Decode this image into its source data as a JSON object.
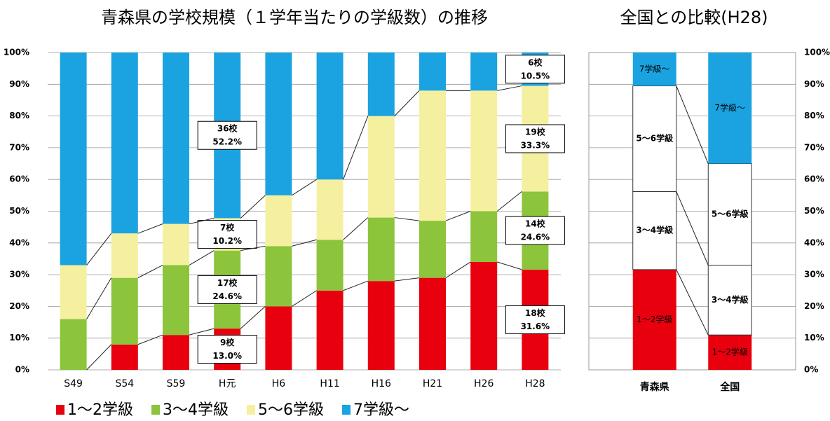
{
  "chart_data": [
    {
      "type": "stacked_bar",
      "title": "青森県の学校規模（１学年当たりの学級数）の推移",
      "categories": [
        "S49",
        "S54",
        "S59",
        "H元",
        "H6",
        "H11",
        "H16",
        "H21",
        "H26",
        "H28"
      ],
      "series": [
        {
          "name": "1〜2学級",
          "color": "#e8000e",
          "values": [
            0,
            8,
            11,
            13.0,
            20,
            25,
            28,
            29,
            34,
            31.6
          ],
          "value_labels": [
            null,
            null,
            null,
            "13.0%",
            null,
            null,
            null,
            null,
            null,
            "31.6%"
          ],
          "count_labels": [
            null,
            null,
            null,
            "9校",
            null,
            null,
            null,
            null,
            null,
            "18校"
          ]
        },
        {
          "name": "3〜4学級",
          "color": "#8cc43c",
          "values": [
            16,
            21,
            22,
            24.6,
            19,
            16,
            20,
            18,
            16,
            24.6
          ],
          "value_labels": [
            null,
            null,
            null,
            "24.6%",
            null,
            null,
            null,
            null,
            null,
            "24.6%"
          ],
          "count_labels": [
            null,
            null,
            null,
            "17校",
            null,
            null,
            null,
            null,
            null,
            "14校"
          ]
        },
        {
          "name": "5〜6学級",
          "color": "#f5f0a0",
          "values": [
            17,
            14,
            13,
            10.2,
            16,
            19,
            32,
            41,
            38,
            33.3
          ],
          "value_labels": [
            null,
            null,
            null,
            "10.2%",
            null,
            null,
            null,
            null,
            null,
            "33.3%"
          ],
          "count_labels": [
            null,
            null,
            null,
            "7校",
            null,
            null,
            null,
            null,
            null,
            "19校"
          ]
        },
        {
          "name": "7学級〜",
          "color": "#1aa3e0",
          "values": [
            67,
            57,
            54,
            52.2,
            45,
            40,
            20,
            12,
            12,
            10.5
          ],
          "value_labels": [
            null,
            null,
            null,
            "52.2%",
            null,
            null,
            null,
            null,
            null,
            "10.5%"
          ],
          "count_labels": [
            null,
            null,
            null,
            "36校",
            null,
            null,
            null,
            null,
            null,
            "6校"
          ]
        }
      ],
      "ylim": [
        0,
        100
      ],
      "yticks": [
        {
          "value": 0,
          "label": "0%"
        },
        {
          "value": 10,
          "label": "10%"
        },
        {
          "value": 20,
          "label": "20%"
        },
        {
          "value": 30,
          "label": "30%"
        },
        {
          "value": 40,
          "label": "40%"
        },
        {
          "value": 50,
          "label": "50%"
        },
        {
          "value": 60,
          "label": "60%"
        },
        {
          "value": 70,
          "label": "70%"
        },
        {
          "value": 80,
          "label": "80%"
        },
        {
          "value": 90,
          "label": "90%"
        },
        {
          "value": 100,
          "label": "100%"
        }
      ],
      "yaxis": "left",
      "grid": true,
      "legend": "bottom"
    },
    {
      "type": "stacked_bar",
      "title": "全国との比較(H28)",
      "categories": [
        "青森県",
        "全国"
      ],
      "series": [
        {
          "name": "1〜2学級",
          "color": "#e8000e",
          "values": [
            31.6,
            11
          ]
        },
        {
          "name": "3〜4学級",
          "color": "#ffffff",
          "values": [
            24.6,
            22
          ]
        },
        {
          "name": "5〜6学級",
          "color": "#ffffff",
          "values": [
            33.3,
            32
          ]
        },
        {
          "name": "7学級〜",
          "color": "#1aa3e0",
          "values": [
            10.5,
            35
          ]
        }
      ],
      "ylim": [
        0,
        100
      ],
      "yticks": [
        {
          "value": 0,
          "label": "0%"
        },
        {
          "value": 10,
          "label": "10%"
        },
        {
          "value": 20,
          "label": "20%"
        },
        {
          "value": 30,
          "label": "30%"
        },
        {
          "value": 40,
          "label": "40%"
        },
        {
          "value": 50,
          "label": "50%"
        },
        {
          "value": 60,
          "label": "60%"
        },
        {
          "value": 70,
          "label": "70%"
        },
        {
          "value": 80,
          "label": "80%"
        },
        {
          "value": 90,
          "label": "90%"
        },
        {
          "value": 100,
          "label": "100%"
        }
      ],
      "yaxis": "right",
      "grid": true
    }
  ]
}
